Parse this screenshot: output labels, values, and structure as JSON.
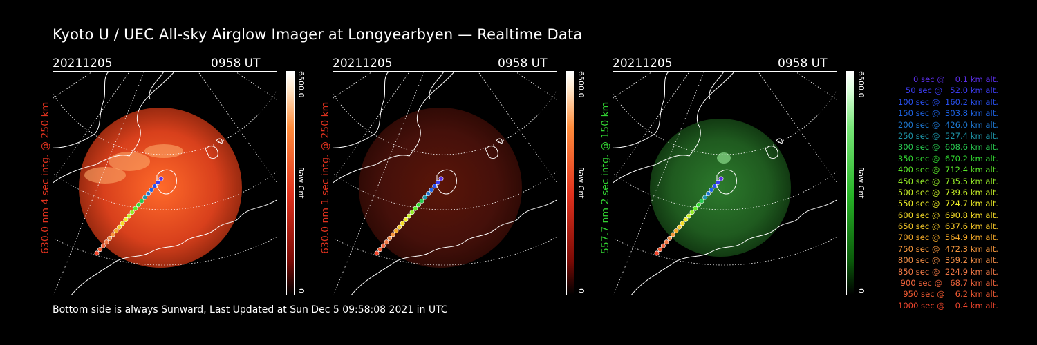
{
  "title": "Kyoto U / UEC All-sky Airglow Imager at Longyearbyen — Realtime Data",
  "footer": "Bottom side is always Sunward, Last Updated at Sun Dec  5 09:58:08 2021 in UTC",
  "panels": [
    {
      "date": "20211205",
      "time": "0958 UT",
      "vlabel": "630.0 nm 4 sec intg. @ 250 km",
      "label_color": "#e0321e",
      "cbar_max": "6500.0",
      "cbar_min": "0",
      "cbar_unit": "Raw Cnt",
      "image_tint": "red",
      "brightness": 0.75
    },
    {
      "date": "20211205",
      "time": "0958 UT",
      "vlabel": "630.0 nm 1 sec intg. @ 250 km",
      "label_color": "#e0321e",
      "cbar_max": "6500.0",
      "cbar_min": "0",
      "cbar_unit": "Raw Cnt",
      "image_tint": "dark-red",
      "brightness": 0.25
    },
    {
      "date": "20211205",
      "time": "0958 UT",
      "vlabel": "557.7 nm 2 sec intg. @ 150 km",
      "label_color": "#32d232",
      "cbar_max": "6500.0",
      "cbar_min": "0",
      "cbar_unit": "Raw Cnt",
      "image_tint": "green",
      "brightness": 0.3
    }
  ],
  "legend": [
    {
      "text": "   0 sec @    0.1 km alt.",
      "color": "#5a2ee6"
    },
    {
      "text": "  50 sec @   52.0 km alt.",
      "color": "#3c3cf0"
    },
    {
      "text": " 100 sec @  160.2 km alt.",
      "color": "#2850f0"
    },
    {
      "text": " 150 sec @  303.8 km alt.",
      "color": "#1e64e6"
    },
    {
      "text": " 200 sec @  426.0 km alt.",
      "color": "#1e78d2"
    },
    {
      "text": " 250 sec @  527.4 km alt.",
      "color": "#1e96aa"
    },
    {
      "text": " 300 sec @  608.6 km alt.",
      "color": "#28c850"
    },
    {
      "text": " 350 sec @  670.2 km alt.",
      "color": "#32dc32"
    },
    {
      "text": " 400 sec @  712.4 km alt.",
      "color": "#5ae628"
    },
    {
      "text": " 450 sec @  735.5 km alt.",
      "color": "#96ec28"
    },
    {
      "text": " 500 sec @  739.6 km alt.",
      "color": "#c8f028"
    },
    {
      "text": " 550 sec @  724.7 km alt.",
      "color": "#f0f028"
    },
    {
      "text": " 600 sec @  690.8 km alt.",
      "color": "#f5dc28"
    },
    {
      "text": " 650 sec @  637.6 km alt.",
      "color": "#f5c828"
    },
    {
      "text": " 700 sec @  564.9 km alt.",
      "color": "#f5aa28"
    },
    {
      "text": " 750 sec @  472.3 km alt.",
      "color": "#f5963c"
    },
    {
      "text": " 800 sec @  359.2 km alt.",
      "color": "#f08c46"
    },
    {
      "text": " 850 sec @  224.9 km alt.",
      "color": "#f07846"
    },
    {
      "text": " 900 sec @   68.7 km alt.",
      "color": "#f0643c"
    },
    {
      "text": " 950 sec @    6.2 km alt.",
      "color": "#f05a32"
    },
    {
      "text": "1000 sec @    0.4 km alt.",
      "color": "#f0462d"
    }
  ]
}
